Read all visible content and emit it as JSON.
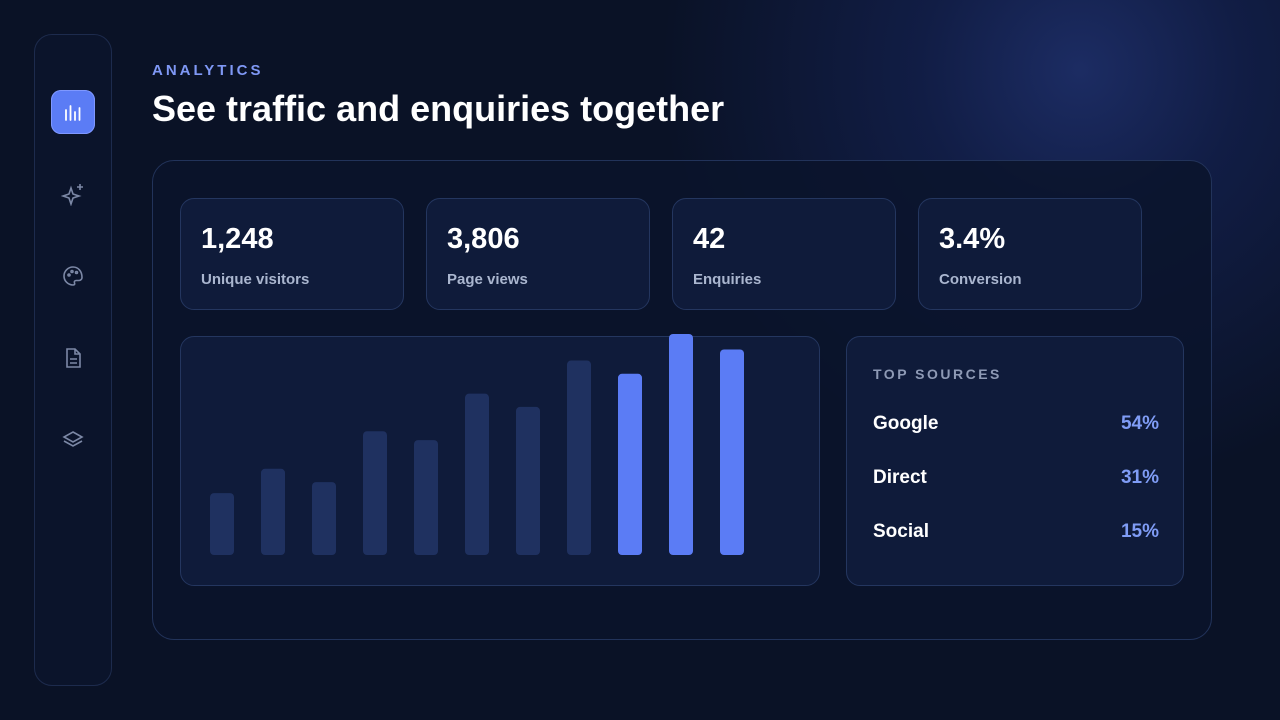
{
  "header": {
    "eyebrow": "ANALYTICS",
    "title": "See traffic and enquiries together"
  },
  "stats": [
    {
      "value": "1,248",
      "label": "Unique visitors"
    },
    {
      "value": "3,806",
      "label": "Page views"
    },
    {
      "value": "42",
      "label": "Enquiries"
    },
    {
      "value": "3.4%",
      "label": "Conversion"
    }
  ],
  "chart_data": {
    "type": "bar",
    "values": [
      28,
      39,
      33,
      56,
      52,
      73,
      67,
      88,
      82,
      100,
      93
    ],
    "colors": [
      "#1f3160",
      "#1f3160",
      "#1f3160",
      "#1f3160",
      "#1f3160",
      "#1f3160",
      "#1f3160",
      "#1f3160",
      "#5b7cf5",
      "#5b7cf5",
      "#5b7cf5"
    ],
    "ylim": [
      0,
      100
    ]
  },
  "sources": {
    "title": "TOP SOURCES",
    "rows": [
      {
        "name": "Google",
        "share": "54%"
      },
      {
        "name": "Direct",
        "share": "31%"
      },
      {
        "name": "Social",
        "share": "15%"
      }
    ]
  }
}
